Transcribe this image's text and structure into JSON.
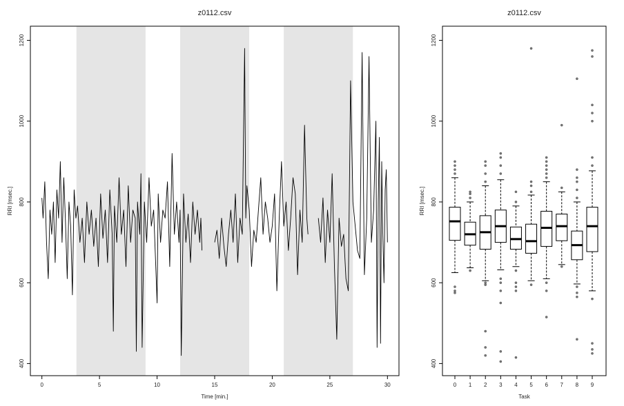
{
  "chart_data": [
    {
      "type": "line",
      "title": "z0112.csv",
      "xlabel": "Time [min.]",
      "ylabel": "RRI [msec.]",
      "xlim": [
        -1.0,
        31.0
      ],
      "ylim": [
        370,
        1235
      ],
      "xticks": [
        0,
        5,
        10,
        15,
        20,
        25,
        30
      ],
      "yticks": [
        400,
        600,
        800,
        1000,
        1200
      ],
      "shaded_intervals": [
        [
          3,
          9
        ],
        [
          12,
          18
        ],
        [
          21,
          27
        ]
      ],
      "series_color": "#000000",
      "shade_color": "#e5e5e5",
      "series": [
        {
          "x": [
            0.0,
            0.1,
            0.25,
            0.4,
            0.55,
            0.7,
            0.85,
            1.0,
            1.15,
            1.3,
            1.45,
            1.6,
            1.75,
            1.9,
            2.05,
            2.2,
            2.35,
            2.5,
            2.65,
            2.8,
            2.95,
            3.1,
            3.3,
            3.5,
            3.7,
            3.9,
            4.1,
            4.3,
            4.5,
            4.7,
            4.9,
            5.1,
            5.3,
            5.5,
            5.7,
            5.9,
            6.1,
            6.2,
            6.3,
            6.5,
            6.7,
            6.9,
            7.1,
            7.3,
            7.5,
            7.7,
            7.9,
            8.1,
            8.2,
            8.3,
            8.5,
            8.6,
            8.7,
            8.9,
            9.1,
            9.3,
            9.5,
            9.7,
            9.9,
            10.0,
            10.1,
            10.3,
            10.5,
            10.7,
            10.9,
            11.1,
            11.3,
            11.5,
            11.7,
            11.9,
            12.0,
            12.1,
            12.3,
            12.5,
            12.7,
            12.9,
            13.1,
            13.3,
            13.5,
            13.7,
            13.8,
            13.9
          ],
          "y": [
            810,
            760,
            850,
            700,
            610,
            780,
            720,
            800,
            650,
            830,
            760,
            900,
            700,
            860,
            750,
            610,
            800,
            740,
            570,
            830,
            760,
            790,
            700,
            760,
            650,
            800,
            720,
            780,
            690,
            760,
            640,
            820,
            710,
            780,
            650,
            830,
            720,
            480,
            790,
            700,
            860,
            720,
            780,
            640,
            840,
            700,
            780,
            760,
            430,
            800,
            720,
            870,
            440,
            800,
            700,
            860,
            740,
            780,
            630,
            550,
            820,
            700,
            780,
            760,
            850,
            640,
            920,
            720,
            800,
            700,
            780,
            420,
            820,
            700,
            770,
            650,
            800,
            720,
            780,
            700,
            760,
            680
          ]
        },
        {
          "x": [
            15.0,
            15.2,
            15.4,
            15.6,
            15.8,
            16.0,
            16.2,
            16.4,
            16.6,
            16.8,
            17.0,
            17.2,
            17.4,
            17.6,
            17.7,
            17.8,
            18.0,
            18.2,
            18.4,
            18.6,
            18.8,
            19.0,
            19.2,
            19.4,
            19.6,
            19.8,
            20.0,
            20.2,
            20.4,
            20.6,
            20.8,
            21.0,
            21.2,
            21.4,
            21.6,
            21.8,
            22.0,
            22.2,
            22.4,
            22.6,
            22.8,
            23.0,
            23.1
          ],
          "y": [
            700,
            730,
            660,
            760,
            690,
            640,
            720,
            780,
            700,
            820,
            650,
            760,
            720,
            1180,
            760,
            840,
            780,
            640,
            730,
            700,
            780,
            860,
            720,
            800,
            760,
            700,
            740,
            820,
            580,
            760,
            900,
            740,
            800,
            680,
            760,
            860,
            820,
            620,
            780,
            700,
            990,
            760,
            720
          ]
        },
        {
          "x": [
            24.0,
            24.2,
            24.4,
            24.6,
            24.8,
            25.0,
            25.2,
            25.4,
            25.6,
            25.8,
            26.0,
            26.2,
            26.4,
            26.6,
            26.8,
            27.0,
            27.2,
            27.4,
            27.6,
            27.8,
            28.0,
            28.2,
            28.4,
            28.6,
            28.8,
            29.0,
            29.1,
            29.2,
            29.3,
            29.4,
            29.5,
            29.6,
            29.7,
            29.8,
            29.9,
            30.0
          ],
          "y": [
            760,
            700,
            810,
            650,
            780,
            700,
            870,
            640,
            460,
            760,
            690,
            720,
            610,
            580,
            1100,
            800,
            740,
            680,
            660,
            1170,
            620,
            760,
            1160,
            700,
            780,
            1000,
            440,
            800,
            960,
            450,
            900,
            720,
            600,
            830,
            880,
            700
          ]
        }
      ]
    },
    {
      "type": "box",
      "title": "z0112.csv",
      "xlabel": "Task",
      "ylabel": "RRI [msec.]",
      "ylim": [
        370,
        1235
      ],
      "yticks": [
        400,
        600,
        800,
        1000,
        1200
      ],
      "categories": [
        "0",
        "1",
        "2",
        "3",
        "4",
        "5",
        "6",
        "7",
        "8",
        "9"
      ],
      "boxes": [
        {
          "whisker_low": 625,
          "q1": 705,
          "median": 752,
          "q3": 787,
          "whisker_high": 860,
          "outliers": [
            575,
            580,
            590,
            870,
            880,
            890,
            900
          ]
        },
        {
          "whisker_low": 637,
          "q1": 693,
          "median": 720,
          "q3": 750,
          "whisker_high": 800,
          "outliers": [
            630,
            810,
            820,
            825
          ]
        },
        {
          "whisker_low": 605,
          "q1": 683,
          "median": 725,
          "q3": 766,
          "whisker_high": 840,
          "outliers": [
            420,
            440,
            480,
            595,
            600,
            850,
            870,
            890,
            900
          ]
        },
        {
          "whisker_low": 632,
          "q1": 700,
          "median": 740,
          "q3": 780,
          "whisker_high": 855,
          "outliers": [
            405,
            430,
            550,
            580,
            600,
            610,
            870,
            890,
            910,
            920
          ]
        },
        {
          "whisker_low": 640,
          "q1": 683,
          "median": 708,
          "q3": 738,
          "whisker_high": 790,
          "outliers": [
            415,
            580,
            590,
            600,
            630,
            800,
            825
          ]
        },
        {
          "whisker_low": 605,
          "q1": 673,
          "median": 703,
          "q3": 745,
          "whisker_high": 817,
          "outliers": [
            595,
            825,
            840,
            850,
            1180
          ]
        },
        {
          "whisker_low": 610,
          "q1": 690,
          "median": 736,
          "q3": 777,
          "whisker_high": 850,
          "outliers": [
            515,
            580,
            600,
            860,
            870,
            880,
            890,
            900,
            910
          ]
        },
        {
          "whisker_low": 645,
          "q1": 704,
          "median": 740,
          "q3": 770,
          "whisker_high": 825,
          "outliers": [
            640,
            835,
            990
          ]
        },
        {
          "whisker_low": 597,
          "q1": 657,
          "median": 693,
          "q3": 728,
          "whisker_high": 800,
          "outliers": [
            460,
            565,
            575,
            590,
            810,
            830,
            850,
            860,
            880,
            1105
          ]
        },
        {
          "whisker_low": 580,
          "q1": 677,
          "median": 740,
          "q3": 787,
          "whisker_high": 877,
          "outliers": [
            425,
            435,
            450,
            560,
            890,
            910,
            1000,
            1020,
            1040,
            1160,
            1175
          ]
        }
      ]
    }
  ]
}
